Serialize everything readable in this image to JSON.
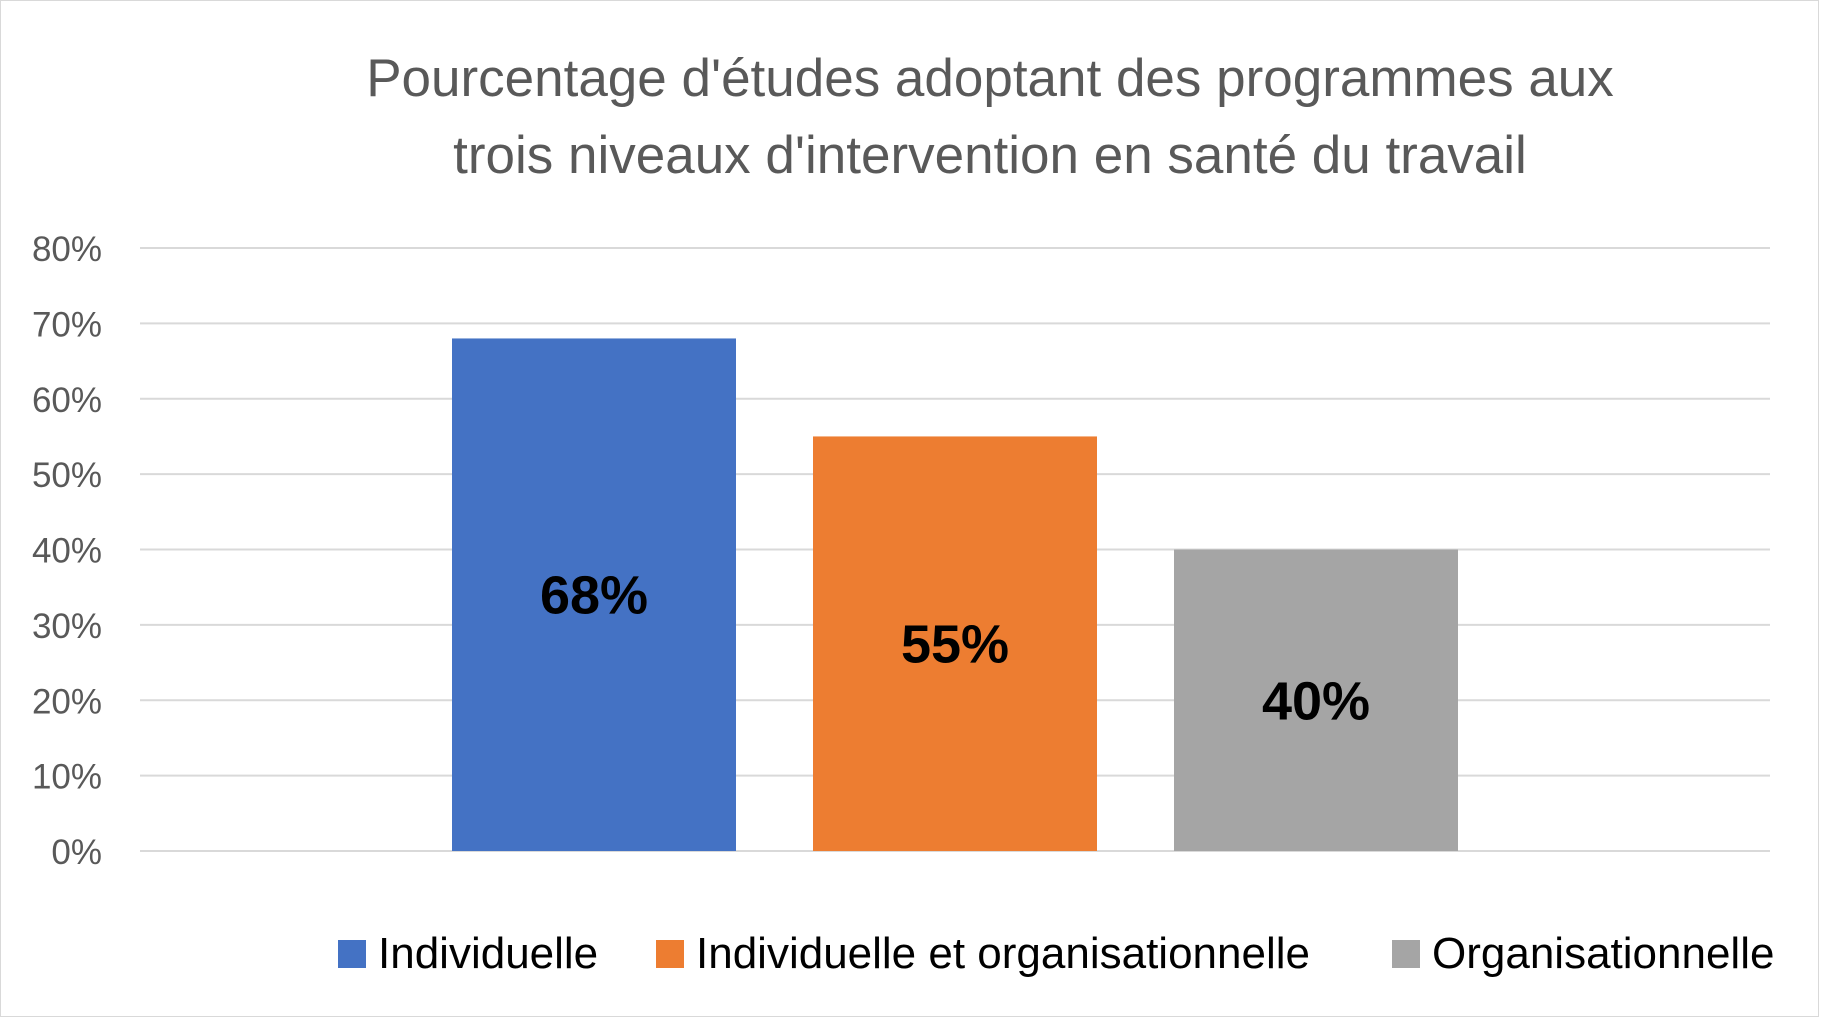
{
  "chart_data": {
    "type": "bar",
    "title": "Pourcentage d'études adoptant des programmes aux\ntrois niveaux d'intervention en santé du travail",
    "xlabel": "",
    "ylabel": "",
    "ylim": [
      0,
      80
    ],
    "yticks": [
      0,
      10,
      20,
      30,
      40,
      50,
      60,
      70,
      80
    ],
    "ytick_labels": [
      "0%",
      "10%",
      "20%",
      "30%",
      "40%",
      "50%",
      "60%",
      "70%",
      "80%"
    ],
    "grid": true,
    "legend_position": "bottom",
    "series": [
      {
        "name": "Individuelle",
        "value": 68,
        "label": "68%",
        "color": "#4472C4"
      },
      {
        "name": "Individuelle et organisationnelle",
        "value": 55,
        "label": "55%",
        "color": "#ED7D31"
      },
      {
        "name": "Organisationnelle",
        "value": 40,
        "label": "40%",
        "color": "#A5A5A5"
      }
    ]
  }
}
